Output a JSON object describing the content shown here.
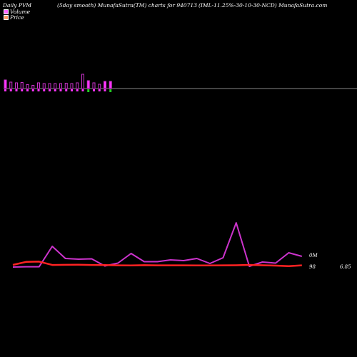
{
  "header": {
    "left": "Daily PVM",
    "middle": "(5day smooth) MunafaSutra(TM) charts for 940713",
    "right": "(IML-11.25%-30-10-30-NCD) MunafaSutra.com"
  },
  "legend": [
    {
      "label": "Volume",
      "color": "#ff66ff"
    },
    {
      "label": "Price",
      "color": "#ff9966"
    }
  ],
  "chart_data": {
    "type": "line",
    "volume_bars": [
      {
        "value": 1.2,
        "dir": "down"
      },
      {
        "value": 0.9,
        "dir": "up"
      },
      {
        "value": 0.8,
        "dir": "up"
      },
      {
        "value": 0.85,
        "dir": "up"
      },
      {
        "value": 0.55,
        "dir": "up"
      },
      {
        "value": 0.45,
        "dir": "up"
      },
      {
        "value": 0.8,
        "dir": "up"
      },
      {
        "value": 0.7,
        "dir": "up"
      },
      {
        "value": 0.7,
        "dir": "up"
      },
      {
        "value": 0.7,
        "dir": "up"
      },
      {
        "value": 0.7,
        "dir": "up"
      },
      {
        "value": 0.75,
        "dir": "up"
      },
      {
        "value": 0.7,
        "dir": "up"
      },
      {
        "value": 0.8,
        "dir": "up"
      },
      {
        "value": 2.0,
        "dir": "up"
      },
      {
        "value": 1.1,
        "dir": "down"
      },
      {
        "value": 0.8,
        "dir": "up"
      },
      {
        "value": 0.6,
        "dir": "up"
      },
      {
        "value": 1.0,
        "dir": "down"
      },
      {
        "value": 1.0,
        "dir": "down"
      }
    ],
    "series": [
      {
        "color": "#cc33cc",
        "values": [
          1,
          1.4,
          1.4,
          30,
          13,
          12,
          12.5,
          2.5,
          6.5,
          20,
          8.5,
          8.5,
          11,
          10,
          13,
          6,
          14,
          63,
          2,
          8,
          6.5,
          21,
          16
        ]
      },
      {
        "color": "#ff2222",
        "values": [
          4,
          8.2,
          8.6,
          3.9,
          4.1,
          4.2,
          3.9,
          3.7,
          3.4,
          3.2,
          3.6,
          3.4,
          3.4,
          3.4,
          3.3,
          3.3,
          3.4,
          3.5,
          4.0,
          3.5,
          3.0,
          2.3,
          3.4
        ]
      }
    ],
    "right_labels": {
      "volume": "0M",
      "price_low": "98",
      "price_value": "6.85"
    }
  },
  "colors": {
    "background": "#000000",
    "volume_bar_up": "#cc33cc",
    "volume_bar_down_fill": "#ff33ff",
    "volume_bar_green": "#22cc22",
    "baseline": "#888888"
  }
}
